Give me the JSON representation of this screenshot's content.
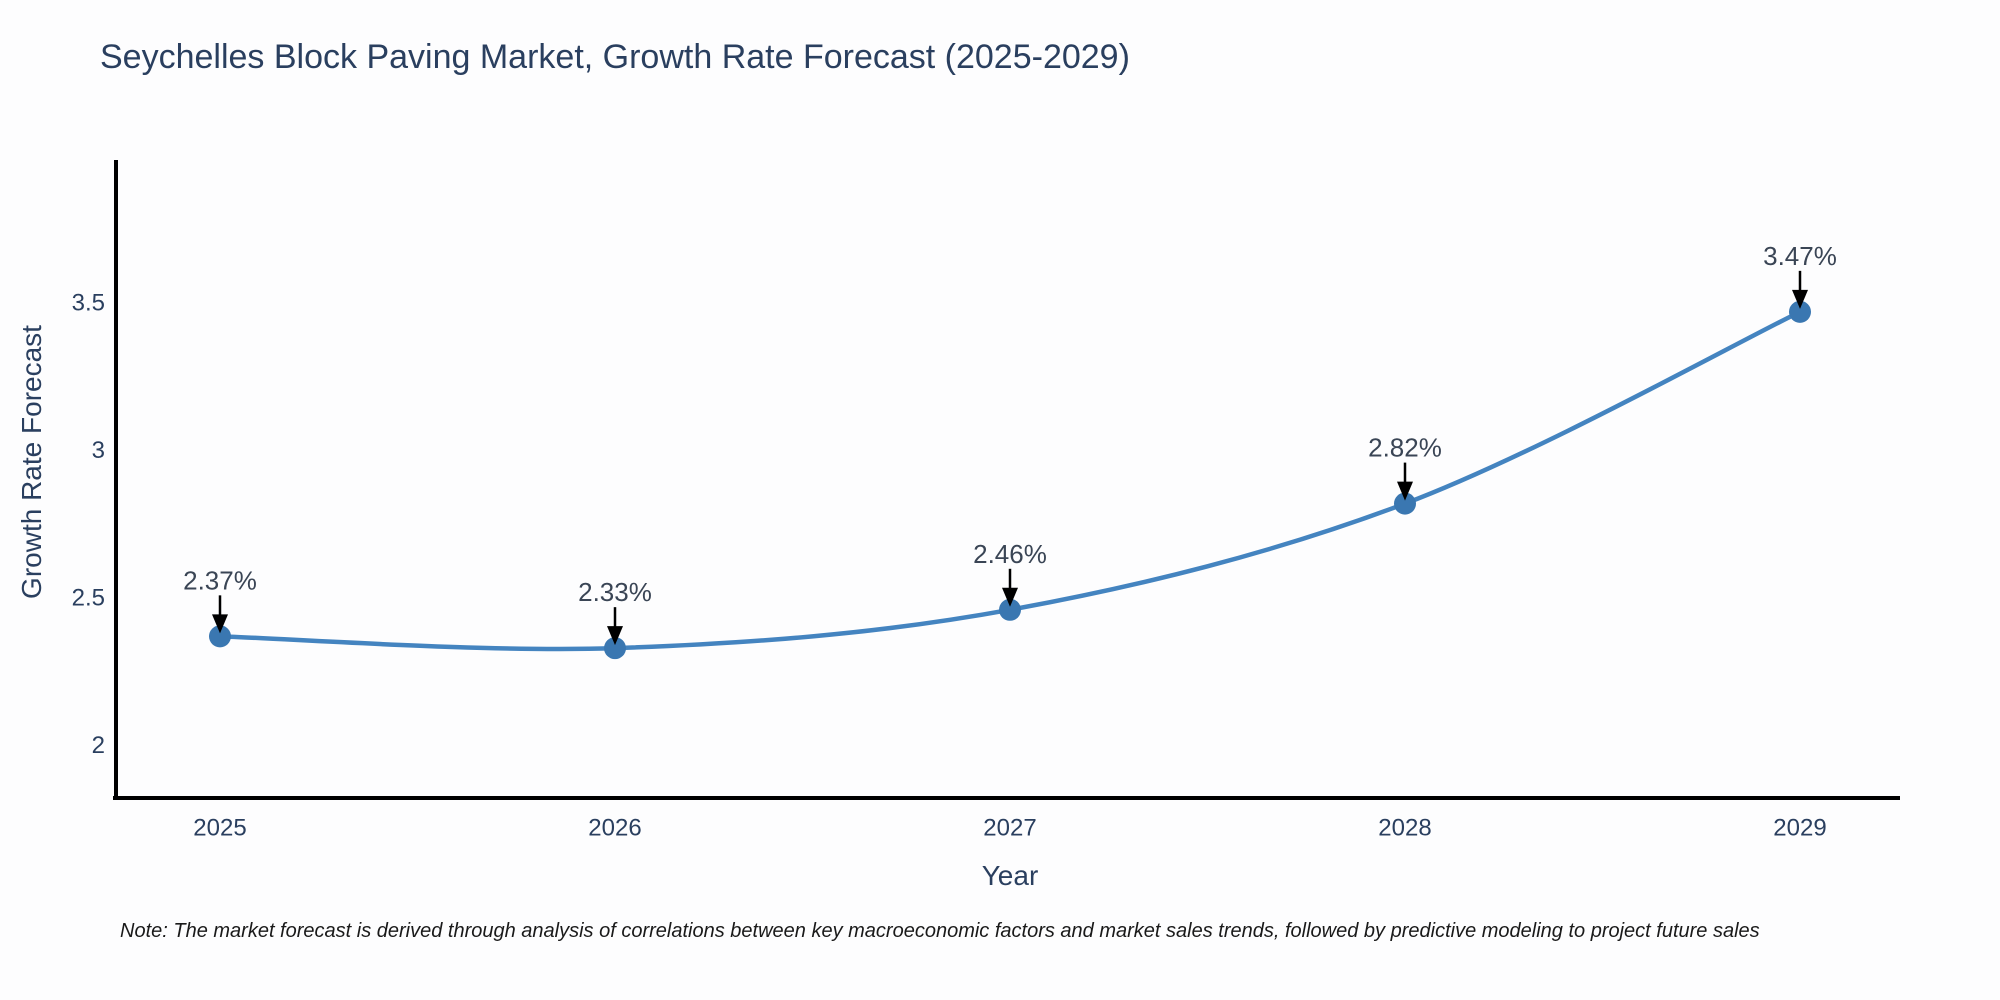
{
  "title": "Seychelles Block Paving Market, Growth Rate Forecast (2025-2029)",
  "note": "Note: The market forecast is derived through analysis of correlations between key macroeconomic factors and market sales trends, followed by predictive modeling to project future sales",
  "chart_data": {
    "type": "line",
    "curve": "spline",
    "title": "Seychelles Block Paving Market, Growth Rate Forecast (2025-2029)",
    "xlabel": "Year",
    "ylabel": "Growth Rate Forecast",
    "x": [
      2025,
      2026,
      2027,
      2028,
      2029
    ],
    "series": [
      {
        "name": "Growth Rate Forecast",
        "values": [
          2.37,
          2.33,
          2.46,
          2.82,
          3.47
        ]
      }
    ],
    "point_labels": [
      "2.37%",
      "2.33%",
      "2.46%",
      "2.82%",
      "3.47%"
    ],
    "xticks": [
      "2025",
      "2026",
      "2027",
      "2028",
      "2029"
    ],
    "yticks": [
      2,
      2.5,
      3,
      3.5
    ],
    "ylim": [
      1.82,
      3.98
    ],
    "grid": false,
    "legend_position": "none",
    "colors": {
      "line": "#4484c0",
      "marker": "#3a77b1",
      "axis": "#000000",
      "tick_text": "#2a3f5f",
      "annotation_text": "#3a4555",
      "arrow": "#000000"
    }
  }
}
